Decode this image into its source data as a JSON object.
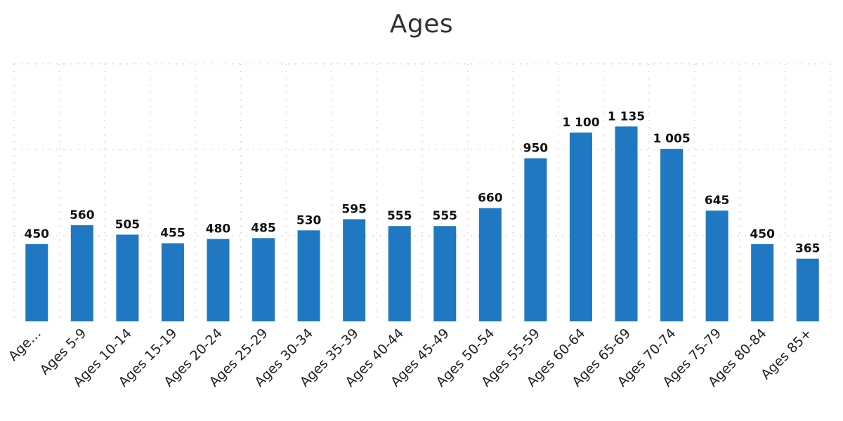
{
  "chart_data": {
    "type": "bar",
    "title": "Ages",
    "xlabel": "",
    "ylabel": "",
    "categories": [
      "Age…",
      "Ages 5-9",
      "Ages 10-14",
      "Ages 15-19",
      "Ages 20-24",
      "Ages 25-29",
      "Ages 30-34",
      "Ages 35-39",
      "Ages 40-44",
      "Ages 45-49",
      "Ages 50-54",
      "Ages 55-59",
      "Ages 60-64",
      "Ages 65-69",
      "Ages 70-74",
      "Ages 75-79",
      "Ages 80-84",
      "Ages 85+"
    ],
    "values": [
      450,
      560,
      505,
      455,
      480,
      485,
      530,
      595,
      555,
      555,
      660,
      950,
      1100,
      1135,
      1005,
      645,
      450,
      365
    ],
    "data_labels": [
      "450",
      "560",
      "505",
      "455",
      "480",
      "485",
      "530",
      "595",
      "555",
      "555",
      "660",
      "950",
      "1 100",
      "1 135",
      "1 005",
      "645",
      "450",
      "365"
    ],
    "ylim": [
      0,
      1500
    ],
    "y_gridlines": [
      500,
      1000,
      1500
    ],
    "x_gridlines": true,
    "grid": true,
    "legend": "none",
    "bar_color": "#1f78c1",
    "grid_color": "#d9d9d9"
  }
}
